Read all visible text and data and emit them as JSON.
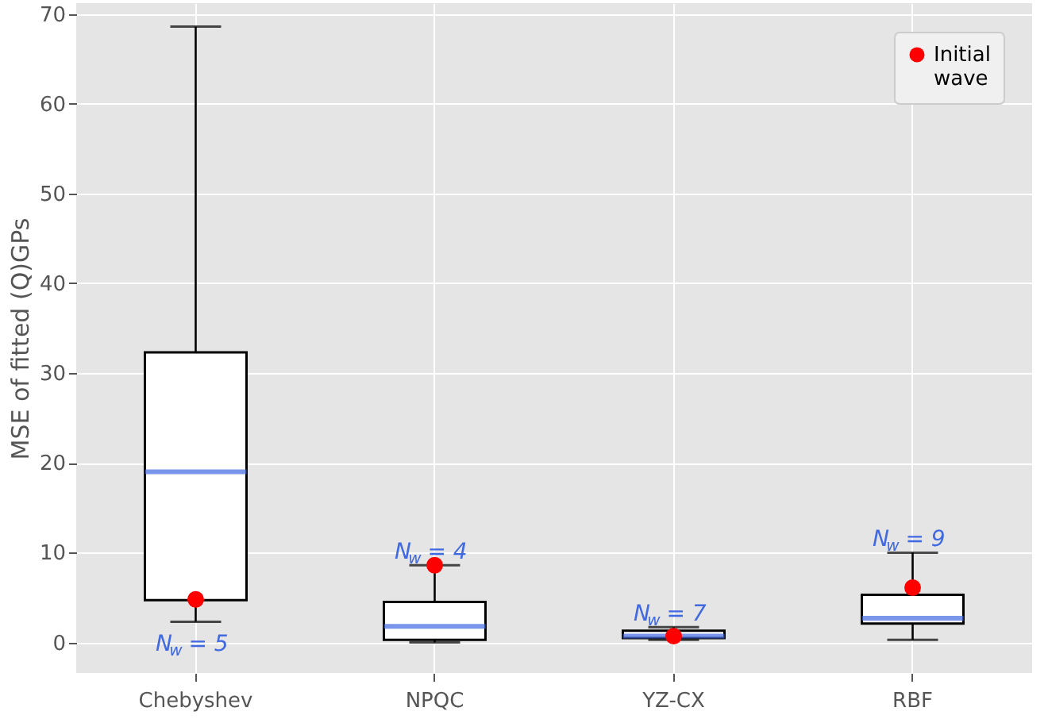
{
  "chart_data": {
    "type": "box",
    "ylabel": "MSE of fitted (Q)GPs",
    "categories": [
      "Chebyshev",
      "NPQC",
      "YZ-CX",
      "RBF"
    ],
    "boxes": [
      {
        "low": 2.3,
        "q1": 4.7,
        "median": 19.0,
        "q3": 32.3,
        "high": 68.6
      },
      {
        "low": 0.0,
        "q1": 0.3,
        "median": 1.8,
        "q3": 4.5,
        "high": 8.6
      },
      {
        "low": 0.3,
        "q1": 0.5,
        "median": 0.7,
        "q3": 1.3,
        "high": 1.7
      },
      {
        "low": 0.3,
        "q1": 2.1,
        "median": 2.7,
        "q3": 5.3,
        "high": 10.0
      }
    ],
    "series": [
      {
        "type": "scatter",
        "name": "Initial wave",
        "color": "#ff0000",
        "x": [
          "Chebyshev",
          "NPQC",
          "YZ-CX",
          "RBF"
        ],
        "values": [
          4.8,
          8.6,
          0.7,
          6.1
        ]
      }
    ],
    "annotations": [
      {
        "text": "N$_{w}$ = 5",
        "x": "Chebyshev",
        "y": 2.3
      },
      {
        "text": "N$_{w}$ = 4",
        "x": "NPQC",
        "y": 8.6
      },
      {
        "text": "N$_{w}$ = 7",
        "x": "YZ-CX",
        "y": 1.7
      },
      {
        "text": "N$_{w}$ = 9",
        "x": "RBF",
        "y": 10.0
      }
    ],
    "ylim": [
      -3.4,
      71.2
    ],
    "yticks": [
      0,
      10,
      20,
      30,
      40,
      50,
      60,
      70
    ],
    "grid": true,
    "legend": "top right"
  }
}
